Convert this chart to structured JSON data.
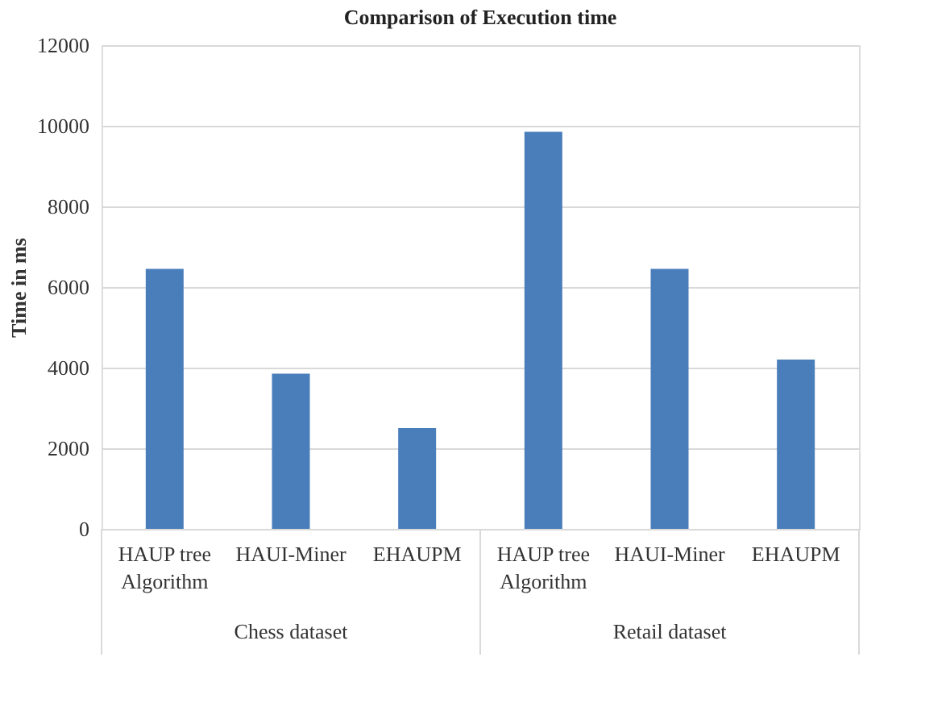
{
  "chart_data": {
    "type": "bar",
    "title": "Comparison of Execution time",
    "ylabel": "Time in ms",
    "categories": [
      "HAUP tree Algorithm",
      "HAUI-Miner",
      "EHAUPM",
      "HAUP tree Algorithm",
      "HAUI-Miner",
      "EHAUPM"
    ],
    "values": [
      6450,
      3850,
      2500,
      9850,
      6450,
      4200
    ],
    "color": "#4a7ebb",
    "ylim": [
      0,
      12000
    ],
    "yticks": [
      0,
      2000,
      4000,
      6000,
      8000,
      10000,
      12000
    ],
    "grid": "y",
    "annotations": [
      "Chess dataset",
      "Retail dataset"
    ]
  }
}
